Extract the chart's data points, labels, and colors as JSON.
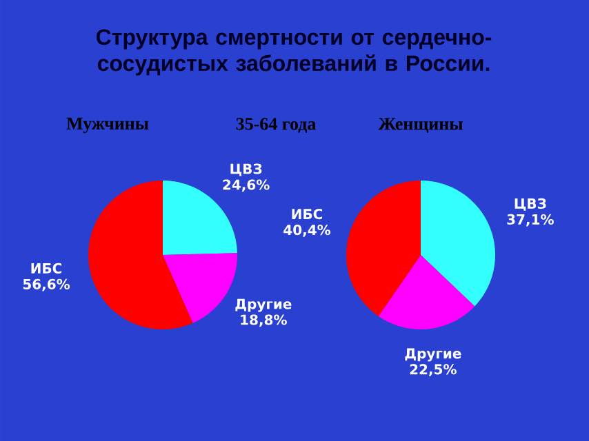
{
  "chart_data": [
    {
      "type": "other",
      "title": "Структура смертности от сердечно-сосудистых заболеваний  в России.",
      "subtitle": "35-64 года"
    },
    {
      "type": "pie",
      "title": "Мужчины",
      "categories": [
        "ЦВЗ",
        "Другие",
        "ИБС"
      ],
      "values": [
        24.6,
        18.8,
        56.6
      ],
      "value_labels": [
        "24,6%",
        "18,8%",
        "56,6%"
      ],
      "colors": [
        "#33ffff",
        "#ff00ff",
        "#ff0000"
      ]
    },
    {
      "type": "pie",
      "title": "Женщины",
      "categories": [
        "ЦВЗ",
        "Другие",
        "ИБС"
      ],
      "values": [
        37.1,
        22.5,
        40.4
      ],
      "value_labels": [
        "37,1%",
        "22,5%",
        "40,4%"
      ],
      "colors": [
        "#33ffff",
        "#ff00ff",
        "#ff0000"
      ]
    }
  ]
}
